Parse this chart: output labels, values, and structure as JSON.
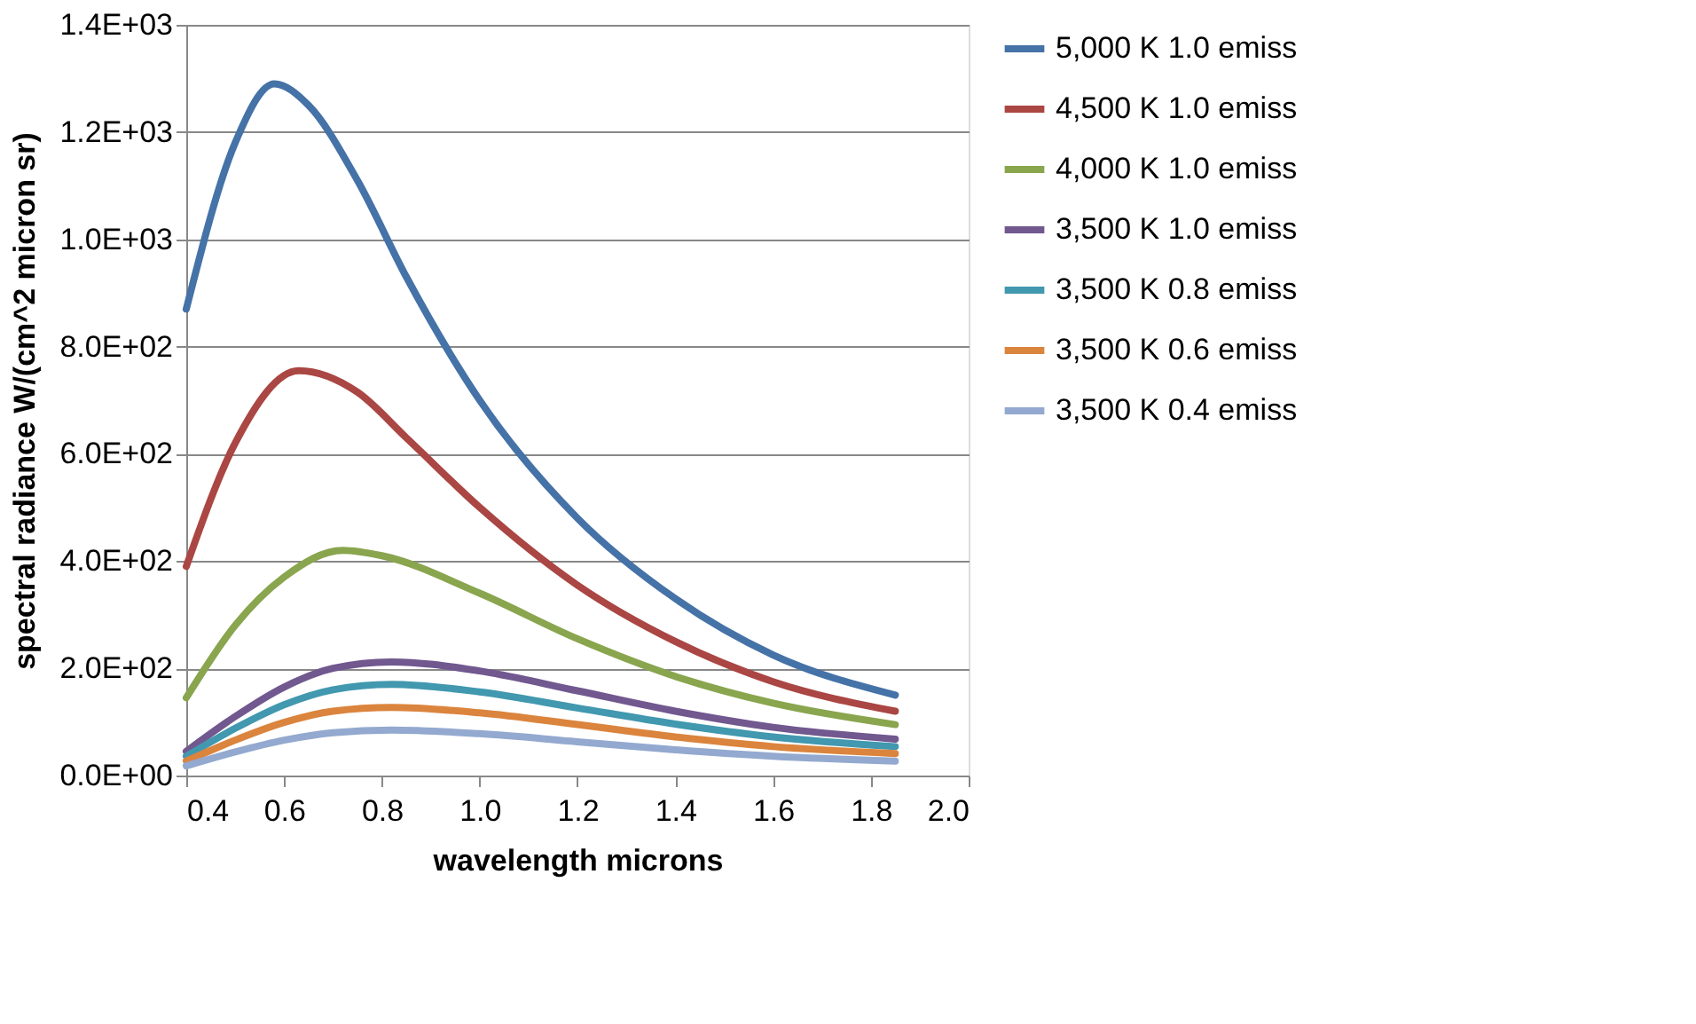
{
  "chart_data": {
    "type": "line",
    "xlabel": "wavelength microns",
    "ylabel": "spectral radiance W/(cm^2 micron sr)",
    "xlim": [
      0.4,
      2.0
    ],
    "xticks": [
      {
        "value": 0.4,
        "label": "0.4"
      },
      {
        "value": 0.6,
        "label": "0.6"
      },
      {
        "value": 0.8,
        "label": "0.8"
      },
      {
        "value": 1.0,
        "label": "1.0"
      },
      {
        "value": 1.2,
        "label": "1.2"
      },
      {
        "value": 1.4,
        "label": "1.4"
      },
      {
        "value": 1.6,
        "label": "1.6"
      },
      {
        "value": 1.8,
        "label": "1.8"
      },
      {
        "value": 2.0,
        "label": "2.0"
      }
    ],
    "ylim": [
      0,
      1400
    ],
    "yticks": [
      {
        "value": 0,
        "label": "0.0E+00"
      },
      {
        "value": 200,
        "label": "2.0E+02"
      },
      {
        "value": 400,
        "label": "4.0E+02"
      },
      {
        "value": 600,
        "label": "6.0E+02"
      },
      {
        "value": 800,
        "label": "8.0E+02"
      },
      {
        "value": 1000,
        "label": "1.0E+03"
      },
      {
        "value": 1200,
        "label": "1.2E+03"
      },
      {
        "value": 1400,
        "label": "1.4E+03"
      }
    ],
    "grid": "y",
    "legend": "right",
    "marker": "none",
    "line_style": "solid",
    "series": [
      {
        "name": "5,000 K  1.0 emiss",
        "color": "#4572a7",
        "x": [
          0.4,
          0.5,
          0.58,
          0.65,
          0.75,
          0.85,
          1.0,
          1.2,
          1.4,
          1.6,
          1.85
        ],
        "values": [
          870,
          1180,
          1290,
          1250,
          1110,
          930,
          700,
          480,
          330,
          225,
          150
        ]
      },
      {
        "name": "4,500 K  1.0 emiss",
        "color": "#aa4643",
        "x": [
          0.4,
          0.5,
          0.63,
          0.75,
          0.85,
          1.0,
          1.2,
          1.4,
          1.6,
          1.85
        ],
        "values": [
          390,
          620,
          755,
          715,
          630,
          500,
          355,
          250,
          175,
          120
        ]
      },
      {
        "name": "4,000 K  1.0 emiss",
        "color": "#89a54e",
        "x": [
          0.4,
          0.5,
          0.6,
          0.72,
          0.8,
          1.0,
          1.2,
          1.4,
          1.6,
          1.85
        ],
        "values": [
          145,
          280,
          370,
          420,
          410,
          340,
          255,
          185,
          135,
          95
        ]
      },
      {
        "name": "3,500 K  1.0 emiss",
        "color": "#71588f",
        "x": [
          0.4,
          0.5,
          0.6,
          0.7,
          0.82,
          1.0,
          1.2,
          1.4,
          1.6,
          1.85
        ],
        "values": [
          45,
          110,
          165,
          200,
          212,
          195,
          158,
          120,
          90,
          68
        ]
      },
      {
        "name": "3,500 K  0.8 emiss",
        "color": "#4198af",
        "x": [
          0.4,
          0.5,
          0.6,
          0.7,
          0.82,
          1.0,
          1.2,
          1.4,
          1.6,
          1.85
        ],
        "values": [
          36,
          88,
          132,
          160,
          170,
          156,
          126,
          96,
          72,
          54
        ]
      },
      {
        "name": "3,500 K  0.6 emiss",
        "color": "#db843d",
        "x": [
          0.4,
          0.5,
          0.6,
          0.7,
          0.82,
          1.0,
          1.2,
          1.4,
          1.6,
          1.85
        ],
        "values": [
          27,
          66,
          99,
          120,
          127,
          117,
          95,
          72,
          54,
          41
        ]
      },
      {
        "name": "3,500 K  0.4 emiss",
        "color": "#93a9cf",
        "x": [
          0.4,
          0.5,
          0.6,
          0.7,
          0.82,
          1.0,
          1.2,
          1.4,
          1.6,
          1.85
        ],
        "values": [
          18,
          44,
          66,
          80,
          85,
          78,
          63,
          48,
          36,
          27
        ]
      }
    ]
  }
}
